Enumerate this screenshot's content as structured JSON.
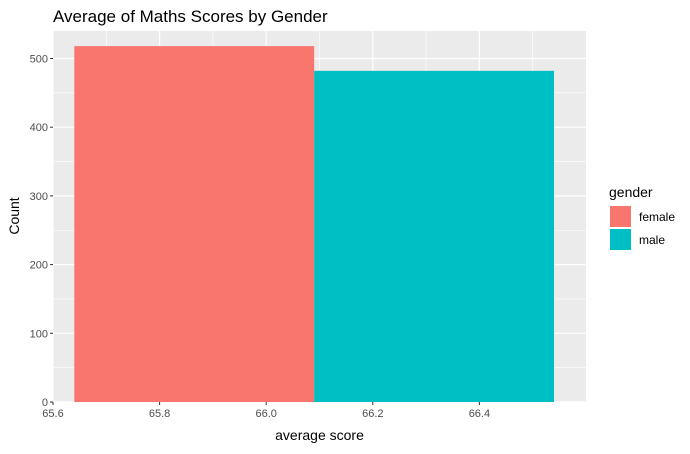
{
  "chart_data": {
    "type": "bar",
    "title": "Average of Maths Scores by Gender",
    "xlabel": "average score",
    "ylabel": "Count",
    "xlim": [
      65.6,
      66.6
    ],
    "ylim": [
      0,
      540
    ],
    "x_ticks": [
      65.6,
      65.8,
      66.0,
      66.2,
      66.4
    ],
    "y_ticks": [
      0,
      100,
      200,
      300,
      400,
      500
    ],
    "grid": true,
    "legend_position": "right",
    "legend_title": "gender",
    "series": [
      {
        "name": "female",
        "color": "#F8766D",
        "x_start": 65.64,
        "x_end": 66.09,
        "value": 518
      },
      {
        "name": "male",
        "color": "#00BFC4",
        "x_start": 66.09,
        "x_end": 66.54,
        "value": 482
      }
    ]
  }
}
